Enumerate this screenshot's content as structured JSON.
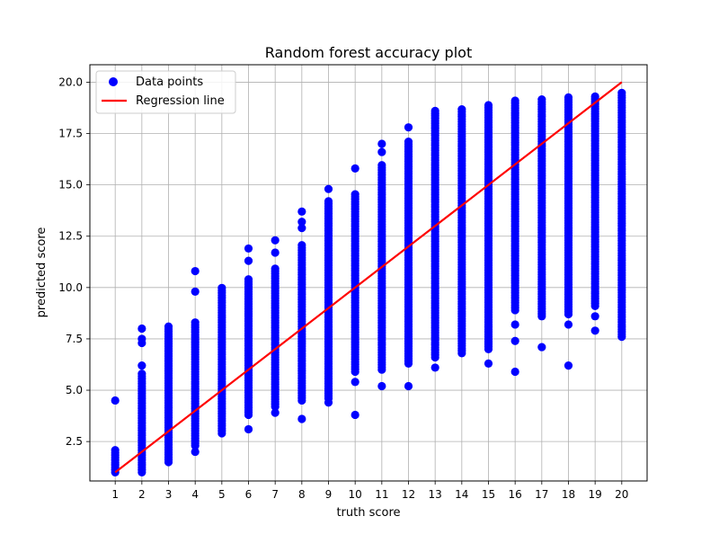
{
  "chart_data": {
    "type": "scatter",
    "title": "Random forest accuracy plot",
    "xlabel": "truth score",
    "ylabel": "predicted score",
    "xlim": [
      0.05,
      20.95
    ],
    "ylim": [
      0.58,
      20.85
    ],
    "x_ticks": [
      1,
      2,
      3,
      4,
      5,
      6,
      7,
      8,
      9,
      10,
      11,
      12,
      13,
      14,
      15,
      16,
      17,
      18,
      19,
      20
    ],
    "y_ticks": [
      2.5,
      5.0,
      7.5,
      10.0,
      12.5,
      15.0,
      17.5,
      20.0
    ],
    "y_tick_labels": [
      "2.5",
      "5.0",
      "7.5",
      "10.0",
      "12.5",
      "15.0",
      "17.5",
      "20.0"
    ],
    "grid": true,
    "legend": {
      "placement": "top-left",
      "entries": [
        "Data points",
        "Regression line"
      ]
    },
    "colors": {
      "points": "#0000ff",
      "line": "#ff0000",
      "grid": "#b0b0b0"
    },
    "series": [
      {
        "name": "Data points",
        "kind": "scatter",
        "columns": [
          {
            "x": 1,
            "range": [
              1.0,
              2.1
            ],
            "outliers": [
              4.5
            ]
          },
          {
            "x": 2,
            "range": [
              1.0,
              5.8
            ],
            "outliers": [
              6.2,
              7.3,
              7.5,
              8.0
            ]
          },
          {
            "x": 3,
            "range": [
              1.5,
              8.2
            ],
            "outliers": []
          },
          {
            "x": 4,
            "range": [
              2.3,
              8.3
            ],
            "outliers": [
              2.0,
              9.8,
              10.8
            ]
          },
          {
            "x": 5,
            "range": [
              2.9,
              10.0
            ],
            "outliers": []
          },
          {
            "x": 6,
            "range": [
              3.8,
              10.5
            ],
            "outliers": [
              3.1,
              11.3,
              11.9
            ]
          },
          {
            "x": 7,
            "range": [
              4.2,
              11.0
            ],
            "outliers": [
              3.9,
              11.7,
              12.3
            ]
          },
          {
            "x": 8,
            "range": [
              4.5,
              12.1
            ],
            "outliers": [
              3.6,
              12.9,
              13.2,
              13.7
            ]
          },
          {
            "x": 9,
            "range": [
              4.6,
              14.3
            ],
            "outliers": [
              4.4,
              14.8
            ]
          },
          {
            "x": 10,
            "range": [
              5.9,
              14.6
            ],
            "outliers": [
              3.8,
              5.4,
              15.8
            ]
          },
          {
            "x": 11,
            "range": [
              6.0,
              16.0
            ],
            "outliers": [
              5.2,
              16.6,
              17.0
            ]
          },
          {
            "x": 12,
            "range": [
              6.3,
              17.2
            ],
            "outliers": [
              5.2,
              17.8
            ]
          },
          {
            "x": 13,
            "range": [
              6.6,
              18.7
            ],
            "outliers": [
              6.1
            ]
          },
          {
            "x": 14,
            "range": [
              6.8,
              18.7
            ],
            "outliers": []
          },
          {
            "x": 15,
            "range": [
              7.0,
              18.9
            ],
            "outliers": [
              6.3
            ]
          },
          {
            "x": 16,
            "range": [
              8.9,
              19.2
            ],
            "outliers": [
              5.9,
              7.4,
              8.2
            ]
          },
          {
            "x": 17,
            "range": [
              8.6,
              19.2
            ],
            "outliers": [
              7.1
            ]
          },
          {
            "x": 18,
            "range": [
              8.7,
              19.3
            ],
            "outliers": [
              6.2,
              8.2
            ]
          },
          {
            "x": 19,
            "range": [
              9.1,
              19.4
            ],
            "outliers": [
              7.9,
              8.6
            ]
          },
          {
            "x": 20,
            "range": [
              7.6,
              19.5
            ],
            "outliers": []
          }
        ]
      },
      {
        "name": "Regression line",
        "kind": "line",
        "x": [
          1,
          20
        ],
        "y": [
          1.0,
          20.0
        ]
      }
    ]
  }
}
